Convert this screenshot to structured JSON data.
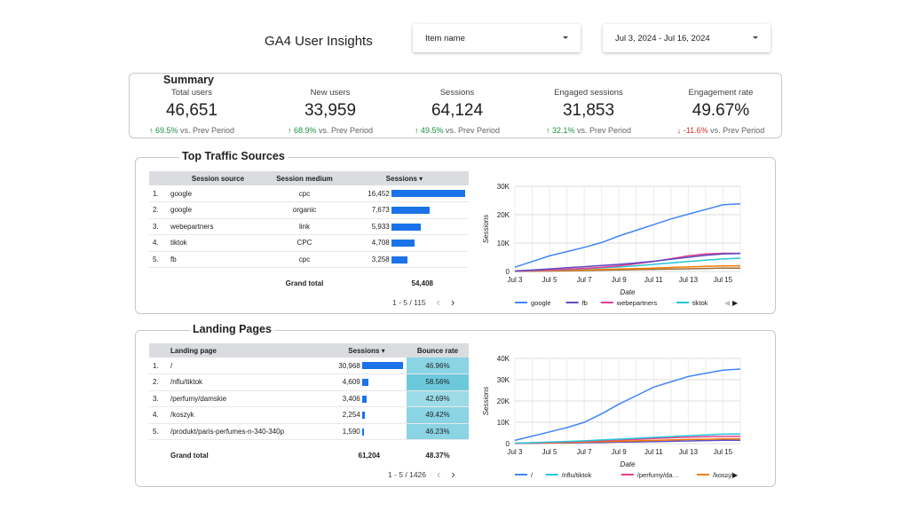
{
  "header": {
    "title": "GA4 User Insights",
    "item_select": "Item name",
    "date_select": "Jul 3, 2024 - Jul 16, 2024"
  },
  "summary": {
    "title": "Summary",
    "compare_text": "vs. Prev Period",
    "kpis": [
      {
        "label": "Total users",
        "value": "46,651",
        "change": "69.5%",
        "trend": "up"
      },
      {
        "label": "New users",
        "value": "33,959",
        "change": "68.9%",
        "trend": "up"
      },
      {
        "label": "Sessions",
        "value": "64,124",
        "change": "49.5%",
        "trend": "up"
      },
      {
        "label": "Engaged sessions",
        "value": "31,853",
        "change": "32.1%",
        "trend": "up"
      },
      {
        "label": "Engagement rate",
        "value": "49.67%",
        "change": "-11.6%",
        "trend": "down"
      }
    ]
  },
  "traffic": {
    "title": "Top Traffic Sources",
    "headers": [
      "Session source",
      "Session medium",
      "Sessions"
    ],
    "rows": [
      {
        "idx": "1.",
        "source": "google",
        "medium": "cpc",
        "sessions": "16,452",
        "bar": 1.0
      },
      {
        "idx": "2.",
        "source": "google",
        "medium": "organic",
        "sessions": "7,673",
        "bar": 0.466
      },
      {
        "idx": "3.",
        "source": "webepartners",
        "medium": "link",
        "sessions": "5,933",
        "bar": 0.361
      },
      {
        "idx": "4.",
        "source": "tiktok",
        "medium": "CPC",
        "sessions": "4,708",
        "bar": 0.286
      },
      {
        "idx": "5.",
        "source": "fb",
        "medium": "cpc",
        "sessions": "3,258",
        "bar": 0.198
      }
    ],
    "grand_total_label": "Grand total",
    "grand_total": "54,408",
    "pager": "1 - 5 / 115"
  },
  "landing": {
    "title": "Landing Pages",
    "headers": [
      "Landing page",
      "Sessions",
      "Bounce rate"
    ],
    "rows": [
      {
        "idx": "1.",
        "page": "/",
        "sessions": "30,968",
        "bar": 1.0,
        "bounce": "46.96%"
      },
      {
        "idx": "2.",
        "page": "/nflu/tiktok",
        "sessions": "4,609",
        "bar": 0.149,
        "bounce": "58.56%"
      },
      {
        "idx": "3.",
        "page": "/perfumy/damskie",
        "sessions": "3,406",
        "bar": 0.11,
        "bounce": "42.69%"
      },
      {
        "idx": "4.",
        "page": "/koszyk",
        "sessions": "2,254",
        "bar": 0.073,
        "bounce": "49.42%"
      },
      {
        "idx": "5.",
        "page": "/produkt/paris-perfumes-n-340-340p",
        "sessions": "1,590",
        "bar": 0.051,
        "bounce": "46.23%"
      }
    ],
    "grand_total_label": "Grand total",
    "grand_total": "61,204",
    "grand_bounce": "48.37%",
    "pager": "1 - 5 / 1426"
  },
  "colors": {
    "accent": "#1a73e8",
    "up": "#1e8e3e",
    "down": "#d93025",
    "bounce_fill": "#8ad4e4"
  },
  "chart_data": [
    {
      "type": "line",
      "x": [
        "Jul 3",
        "Jul 4",
        "Jul 5",
        "Jul 6",
        "Jul 7",
        "Jul 8",
        "Jul 9",
        "Jul 10",
        "Jul 11",
        "Jul 12",
        "Jul 13",
        "Jul 14",
        "Jul 15",
        "Jul 16"
      ],
      "x_tick_labels": [
        "Jul 3",
        "Jul 5",
        "Jul 7",
        "Jul 9",
        "Jul 11",
        "Jul 13",
        "Jul 15"
      ],
      "xlabel": "Date",
      "ylabel": "Sessions",
      "ylim": [
        0,
        30000
      ],
      "y_ticks": [
        "0",
        "10K",
        "20K",
        "30K"
      ],
      "y_tick_values": [
        0,
        10000,
        20000,
        30000
      ],
      "grid": true,
      "legend_position": "bottom",
      "series": [
        {
          "name": "google",
          "color": "#4285f4",
          "values": [
            1500,
            3500,
            5500,
            7000,
            8500,
            10200,
            12500,
            14500,
            16500,
            18500,
            20200,
            21800,
            23500,
            23800
          ]
        },
        {
          "name": "fb",
          "color": "#5c4cc4",
          "values": [
            200,
            500,
            900,
            1300,
            1700,
            2100,
            2500,
            3000,
            3600,
            4300,
            5000,
            5700,
            6200,
            6300
          ]
        },
        {
          "name": "webepartners",
          "color": "#e83e8c",
          "values": [
            100,
            300,
            500,
            800,
            1100,
            1500,
            2000,
            2700,
            3500,
            4500,
            5500,
            6200,
            6400,
            6400
          ]
        },
        {
          "name": "tiktok",
          "color": "#26c6da",
          "values": [
            100,
            250,
            450,
            700,
            950,
            1250,
            1600,
            2000,
            2500,
            3000,
            3500,
            4000,
            4400,
            4700
          ]
        },
        {
          "name": "",
          "color": "#f57c00",
          "values": [
            50,
            150,
            250,
            400,
            550,
            700,
            850,
            1000,
            1200,
            1400,
            1600,
            1800,
            1950,
            2000
          ]
        },
        {
          "name": "",
          "color": "#9e6b3e",
          "values": [
            20,
            80,
            150,
            250,
            350,
            450,
            550,
            650,
            750,
            850,
            950,
            1050,
            1150,
            1200
          ]
        }
      ]
    },
    {
      "type": "line",
      "x": [
        "Jul 3",
        "Jul 4",
        "Jul 5",
        "Jul 6",
        "Jul 7",
        "Jul 8",
        "Jul 9",
        "Jul 10",
        "Jul 11",
        "Jul 12",
        "Jul 13",
        "Jul 14",
        "Jul 15",
        "Jul 16"
      ],
      "x_tick_labels": [
        "Jul 3",
        "Jul 5",
        "Jul 7",
        "Jul 9",
        "Jul 11",
        "Jul 13",
        "Jul 15"
      ],
      "xlabel": "Date",
      "ylabel": "Sessions",
      "ylim": [
        0,
        40000
      ],
      "y_ticks": [
        "0",
        "10K",
        "20K",
        "30K",
        "40K"
      ],
      "y_tick_values": [
        0,
        10000,
        20000,
        30000,
        40000
      ],
      "grid": true,
      "legend_position": "bottom",
      "series": [
        {
          "name": "/",
          "color": "#4285f4",
          "values": [
            1500,
            3500,
            5500,
            7500,
            10000,
            14000,
            18500,
            22500,
            26500,
            29000,
            31500,
            33000,
            34500,
            35000
          ]
        },
        {
          "name": "/nflu/tiktok",
          "color": "#26c6da",
          "values": [
            200,
            400,
            700,
            1000,
            1300,
            1700,
            2100,
            2500,
            2900,
            3300,
            3700,
            4100,
            4400,
            4600
          ]
        },
        {
          "name": "/perfumy/da…",
          "color": "#e83e8c",
          "values": [
            100,
            300,
            500,
            800,
            1100,
            1400,
            1700,
            2000,
            2400,
            2700,
            3000,
            3200,
            3350,
            3400
          ]
        },
        {
          "name": "/koszyk",
          "color": "#f57c00",
          "values": [
            80,
            200,
            350,
            500,
            700,
            900,
            1100,
            1300,
            1500,
            1700,
            1900,
            2050,
            2200,
            2250
          ]
        },
        {
          "name": "",
          "color": "#5c4cc4",
          "values": [
            50,
            150,
            250,
            350,
            450,
            550,
            700,
            800,
            950,
            1100,
            1250,
            1400,
            1550,
            1600
          ]
        }
      ]
    }
  ]
}
